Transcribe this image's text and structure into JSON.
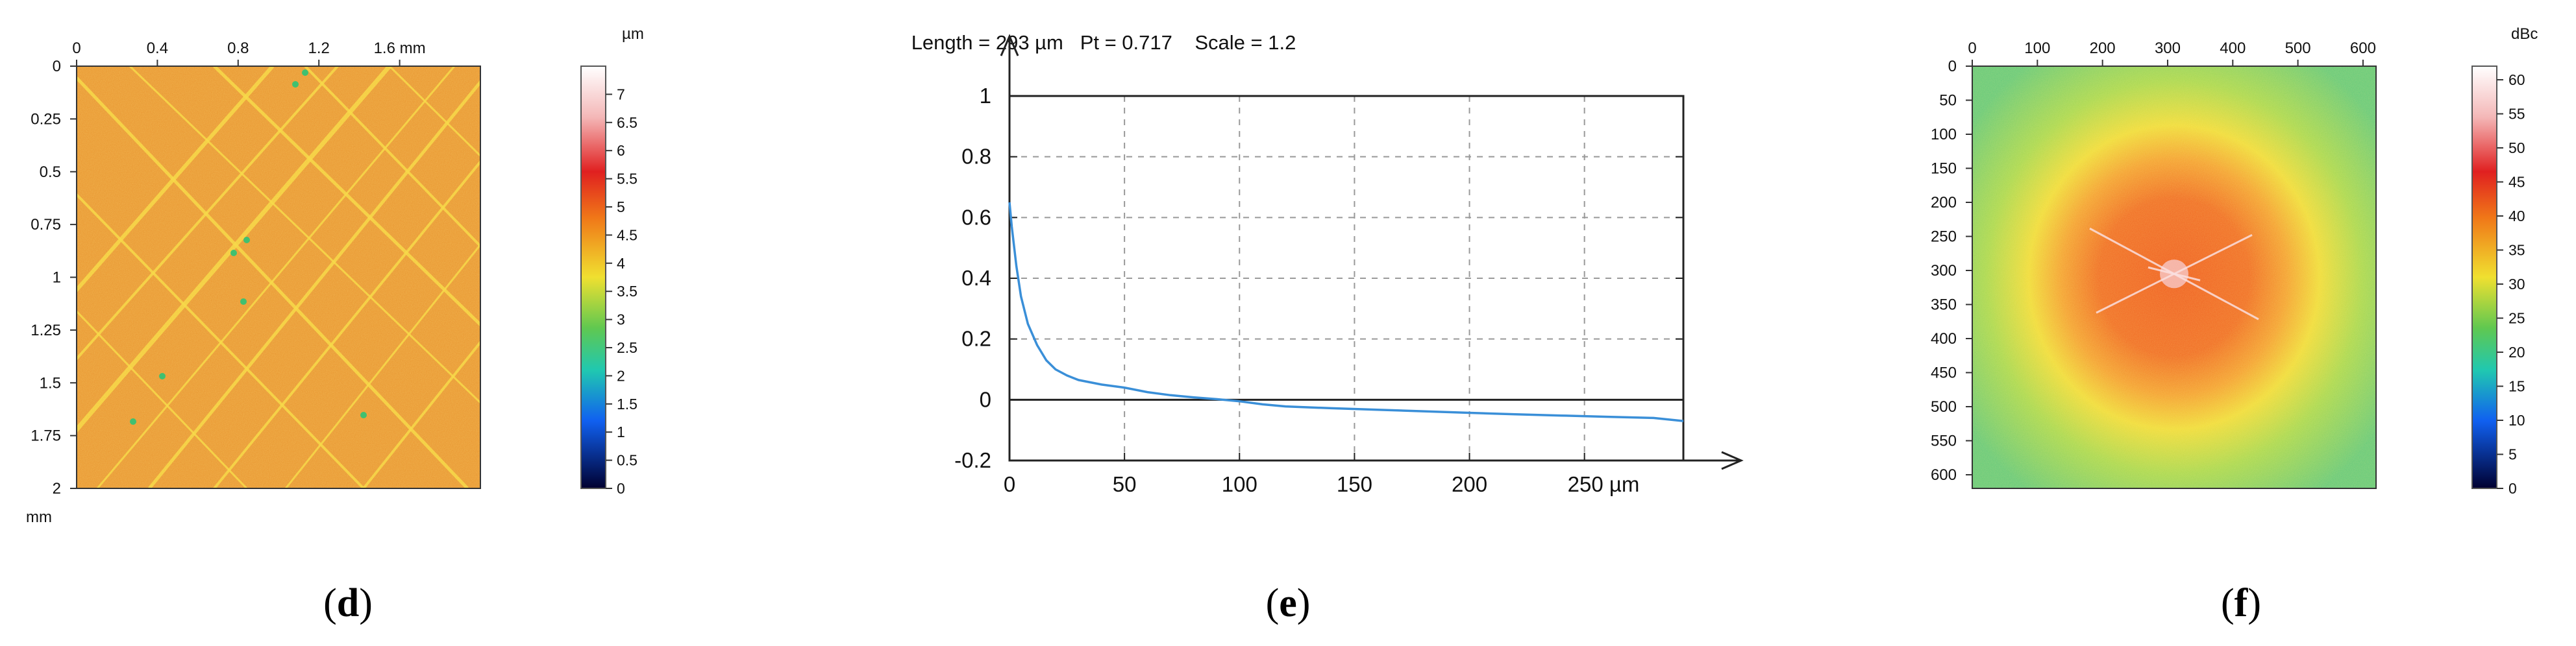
{
  "panels": [
    {
      "caption": "d",
      "chart_data": {
        "type": "heatmap",
        "x_ticks": [
          "0",
          "0.4",
          "0.8",
          "1.2",
          "1.6 mm"
        ],
        "x_tick_values": [
          0,
          0.4,
          0.8,
          1.2,
          1.6
        ],
        "xlim": [
          0,
          2
        ],
        "y_ticks": [
          "0",
          "0.25",
          "0.5",
          "0.75",
          "1",
          "1.25",
          "1.5",
          "1.75",
          "2"
        ],
        "y_tick_values": [
          0,
          0.25,
          0.5,
          0.75,
          1,
          1.25,
          1.5,
          1.75,
          2
        ],
        "ylim": [
          0,
          2
        ],
        "y_unit": "mm",
        "colorbar_unit": "µm",
        "colorbar_ticks": [
          "7",
          "6.5",
          "6",
          "5.5",
          "5",
          "4.5",
          "4",
          "3.5",
          "3",
          "2.5",
          "2",
          "1.5",
          "1",
          "0.5",
          "0"
        ],
        "colorbar_range": [
          0,
          7.5
        ],
        "base_color": "#e8922c",
        "stripe_color": "#f6d43a"
      }
    },
    {
      "caption": "e",
      "chart_data": {
        "type": "line",
        "title": "Length = 293 µm   Pt = 0.717    Scale = 1.2",
        "x_ticks": [
          "0",
          "50",
          "100",
          "150",
          "200",
          "250 µm"
        ],
        "x_tick_values": [
          0,
          50,
          100,
          150,
          200,
          250
        ],
        "xlim": [
          0,
          293
        ],
        "y_ticks": [
          "1",
          "0.8",
          "0.6",
          "0.4",
          "0.2",
          "0",
          "-0.2"
        ],
        "y_tick_values": [
          1,
          0.8,
          0.6,
          0.4,
          0.2,
          0,
          -0.2
        ],
        "ylim": [
          -0.2,
          1
        ],
        "grid": true,
        "series": [
          {
            "color": "#3a8fd8",
            "x": [
              0,
              1,
              3,
              5,
              8,
              12,
              16,
              20,
              25,
              30,
              40,
              50,
              60,
              70,
              80,
              90,
              100,
              110,
              120,
              140,
              160,
              180,
              200,
              220,
              240,
              260,
              280,
              293
            ],
            "y": [
              0.65,
              0.57,
              0.44,
              0.34,
              0.25,
              0.18,
              0.13,
              0.1,
              0.08,
              0.065,
              0.05,
              0.04,
              0.025,
              0.015,
              0.008,
              0.002,
              -0.005,
              -0.015,
              -0.022,
              -0.028,
              -0.033,
              -0.038,
              -0.043,
              -0.048,
              -0.052,
              -0.056,
              -0.06,
              -0.07
            ]
          }
        ]
      }
    },
    {
      "caption": "f",
      "chart_data": {
        "type": "heatmap",
        "x_ticks": [
          "0",
          "100",
          "200",
          "300",
          "400",
          "500",
          "600"
        ],
        "x_tick_values": [
          0,
          100,
          200,
          300,
          400,
          500,
          600
        ],
        "xlim": [
          0,
          620
        ],
        "y_ticks": [
          "0",
          "50",
          "100",
          "150",
          "200",
          "250",
          "300",
          "350",
          "400",
          "450",
          "500",
          "550",
          "600"
        ],
        "y_tick_values": [
          0,
          50,
          100,
          150,
          200,
          250,
          300,
          350,
          400,
          450,
          500,
          550,
          600
        ],
        "ylim": [
          0,
          620
        ],
        "colorbar_unit": "dBc",
        "colorbar_ticks": [
          "60",
          "55",
          "50",
          "45",
          "40",
          "35",
          "30",
          "25",
          "20",
          "15",
          "10",
          "5",
          "0"
        ],
        "colorbar_range": [
          0,
          62
        ],
        "center": [
          310,
          305
        ],
        "outer_color": "#7ccf6e",
        "inner_color": "#ef5a1e"
      }
    }
  ],
  "colors": {
    "colorbar_stops": [
      "#ffffff",
      "#f4b8b8",
      "#e02020",
      "#f07818",
      "#f0e030",
      "#60c850",
      "#20c8b0",
      "#1060f0",
      "#000030"
    ]
  }
}
